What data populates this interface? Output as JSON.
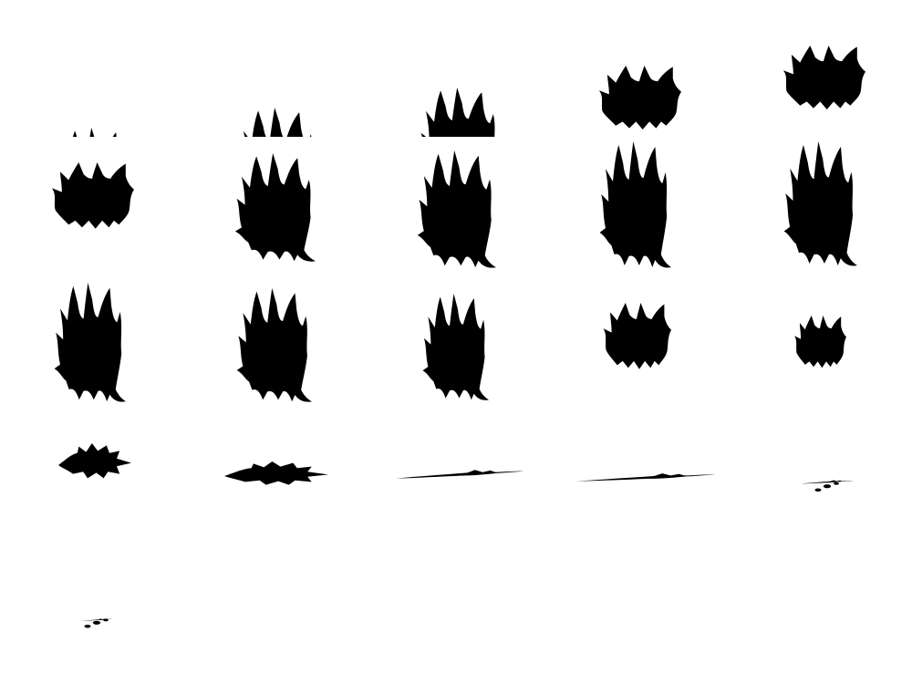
{
  "sprite_sheet": {
    "subject": "claw-hand",
    "columns": 5,
    "frame_count": 21,
    "background_color": "#ffffff",
    "silhouette_color": "#000000",
    "frames": [
      {
        "index": 1,
        "pose": "rising",
        "visible_fraction": 0.08
      },
      {
        "index": 2,
        "pose": "rising",
        "visible_fraction": 0.25
      },
      {
        "index": 3,
        "pose": "rising",
        "visible_fraction": 0.45
      },
      {
        "index": 4,
        "pose": "rising",
        "visible_fraction": 0.75
      },
      {
        "index": 5,
        "pose": "rising",
        "visible_fraction": 1.0
      },
      {
        "index": 6,
        "pose": "reach",
        "visible_fraction": 1.0
      },
      {
        "index": 7,
        "pose": "reach",
        "visible_fraction": 1.0
      },
      {
        "index": 8,
        "pose": "reach",
        "visible_fraction": 1.0
      },
      {
        "index": 9,
        "pose": "open",
        "visible_fraction": 1.0
      },
      {
        "index": 10,
        "pose": "open",
        "visible_fraction": 1.0
      },
      {
        "index": 11,
        "pose": "open",
        "visible_fraction": 1.0
      },
      {
        "index": 12,
        "pose": "curl",
        "visible_fraction": 1.0
      },
      {
        "index": 13,
        "pose": "curl",
        "visible_fraction": 1.0
      },
      {
        "index": 14,
        "pose": "shrink",
        "visible_fraction": 0.8
      },
      {
        "index": 15,
        "pose": "shrink",
        "visible_fraction": 0.6
      },
      {
        "index": 16,
        "pose": "collapse",
        "visible_fraction": 0.5
      },
      {
        "index": 17,
        "pose": "splat",
        "visible_fraction": 0.4
      },
      {
        "index": 18,
        "pose": "streak",
        "visible_fraction": 0.3
      },
      {
        "index": 19,
        "pose": "streak",
        "visible_fraction": 0.2
      },
      {
        "index": 20,
        "pose": "specks",
        "visible_fraction": 0.1
      },
      {
        "index": 21,
        "pose": "specks",
        "visible_fraction": 0.05
      }
    ]
  }
}
